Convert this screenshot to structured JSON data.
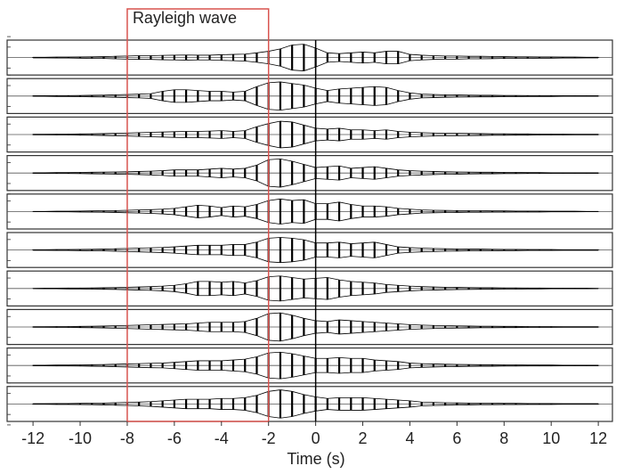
{
  "chart_data": {
    "type": "wiggle",
    "x_label": "Time (s)",
    "xlim": [
      -13.1,
      12.6
    ],
    "ylim": [
      -1,
      1
    ],
    "xticks": [
      -12,
      -10,
      -8,
      -6,
      -4,
      -2,
      0,
      2,
      4,
      6,
      8,
      10,
      12
    ],
    "x": [
      -12,
      -11.5,
      -11,
      -10.5,
      -10,
      -9.5,
      -9,
      -8.5,
      -8,
      -7.5,
      -7,
      -6.5,
      -6,
      -5.5,
      -5,
      -4.5,
      -4,
      -3.5,
      -3,
      -2.5,
      -2,
      -1.5,
      -1,
      -0.5,
      0,
      0.5,
      1,
      1.5,
      2,
      2.5,
      3,
      3.5,
      4,
      4.5,
      5,
      5.5,
      6,
      6.5,
      7,
      7.5,
      8,
      8.5,
      9,
      9.5,
      10,
      10.5,
      11,
      11.5,
      12
    ],
    "vline": 0,
    "annotation": {
      "text": "Rayleigh wave",
      "x": [
        -8,
        -2
      ],
      "color": "#d9534f"
    },
    "series": [
      {
        "color": "#000000",
        "values": [
          0.02,
          0.02,
          0.03,
          0.03,
          0.04,
          0.05,
          0.06,
          0.08,
          0.1,
          0.12,
          0.12,
          0.14,
          0.15,
          0.16,
          0.15,
          0.15,
          0.18,
          0.2,
          0.22,
          0.3,
          0.4,
          0.55,
          0.8,
          0.85,
          0.6,
          0.3,
          0.25,
          0.3,
          0.35,
          0.3,
          0.4,
          0.4,
          0.2,
          0.15,
          0.12,
          0.1,
          0.1,
          0.08,
          0.08,
          0.07,
          0.06,
          0.05,
          0.05,
          0.04,
          0.04,
          0.03,
          0.03,
          0.02,
          0.02
        ]
      },
      {
        "color": "#000000",
        "values": [
          0.02,
          0.02,
          0.03,
          0.03,
          0.04,
          0.05,
          0.06,
          0.08,
          0.1,
          0.12,
          0.15,
          0.3,
          0.4,
          0.4,
          0.35,
          0.3,
          0.3,
          0.25,
          0.3,
          0.6,
          0.85,
          0.9,
          0.8,
          0.7,
          0.5,
          0.35,
          0.45,
          0.5,
          0.55,
          0.6,
          0.55,
          0.35,
          0.2,
          0.12,
          0.1,
          0.08,
          0.07,
          0.06,
          0.05,
          0.05,
          0.04,
          0.04,
          0.03,
          0.03,
          0.03,
          0.02,
          0.02,
          0.02,
          0.02
        ]
      },
      {
        "color": "#000000",
        "values": [
          0.02,
          0.02,
          0.03,
          0.03,
          0.04,
          0.05,
          0.06,
          0.08,
          0.1,
          0.12,
          0.14,
          0.16,
          0.18,
          0.2,
          0.2,
          0.22,
          0.25,
          0.2,
          0.25,
          0.5,
          0.7,
          0.85,
          0.8,
          0.6,
          0.4,
          0.35,
          0.4,
          0.3,
          0.3,
          0.25,
          0.3,
          0.2,
          0.15,
          0.12,
          0.1,
          0.08,
          0.08,
          0.07,
          0.06,
          0.05,
          0.05,
          0.04,
          0.04,
          0.03,
          0.03,
          0.03,
          0.02,
          0.02,
          0.02
        ]
      },
      {
        "color": "#000000",
        "values": [
          0.02,
          0.02,
          0.03,
          0.03,
          0.04,
          0.05,
          0.06,
          0.07,
          0.08,
          0.1,
          0.12,
          0.15,
          0.2,
          0.2,
          0.2,
          0.25,
          0.3,
          0.25,
          0.3,
          0.5,
          0.85,
          0.9,
          0.75,
          0.55,
          0.35,
          0.4,
          0.45,
          0.3,
          0.35,
          0.4,
          0.3,
          0.2,
          0.15,
          0.12,
          0.1,
          0.08,
          0.07,
          0.06,
          0.05,
          0.05,
          0.04,
          0.04,
          0.03,
          0.03,
          0.02,
          0.02,
          0.02,
          0.02,
          0.02
        ]
      },
      {
        "color": "#000000",
        "values": [
          0.01,
          0.01,
          0.02,
          0.02,
          0.03,
          0.04,
          0.05,
          0.06,
          0.08,
          0.1,
          0.12,
          0.15,
          0.2,
          0.3,
          0.4,
          0.35,
          0.25,
          0.35,
          0.3,
          0.45,
          0.7,
          0.8,
          0.7,
          0.75,
          0.5,
          0.5,
          0.6,
          0.45,
          0.35,
          0.35,
          0.3,
          0.2,
          0.15,
          0.1,
          0.08,
          0.07,
          0.06,
          0.05,
          0.05,
          0.04,
          0.04,
          0.03,
          0.03,
          0.03,
          0.02,
          0.02,
          0.02,
          0.01,
          0.01
        ]
      },
      {
        "color": "#000000",
        "values": [
          0.02,
          0.02,
          0.03,
          0.03,
          0.04,
          0.05,
          0.06,
          0.08,
          0.1,
          0.12,
          0.14,
          0.16,
          0.2,
          0.25,
          0.3,
          0.3,
          0.3,
          0.35,
          0.35,
          0.5,
          0.75,
          0.8,
          0.75,
          0.65,
          0.45,
          0.45,
          0.5,
          0.4,
          0.45,
          0.5,
          0.35,
          0.2,
          0.15,
          0.12,
          0.1,
          0.08,
          0.07,
          0.06,
          0.06,
          0.05,
          0.04,
          0.04,
          0.03,
          0.03,
          0.03,
          0.02,
          0.02,
          0.02,
          0.02
        ]
      },
      {
        "color": "#000000",
        "values": [
          0.01,
          0.02,
          0.02,
          0.03,
          0.03,
          0.04,
          0.05,
          0.06,
          0.08,
          0.1,
          0.12,
          0.15,
          0.2,
          0.3,
          0.45,
          0.45,
          0.4,
          0.45,
          0.35,
          0.5,
          0.75,
          0.8,
          0.7,
          0.6,
          0.65,
          0.7,
          0.55,
          0.45,
          0.4,
          0.35,
          0.25,
          0.2,
          0.15,
          0.12,
          0.1,
          0.08,
          0.07,
          0.06,
          0.05,
          0.05,
          0.04,
          0.04,
          0.03,
          0.03,
          0.02,
          0.02,
          0.02,
          0.02,
          0.01
        ]
      },
      {
        "color": "#000000",
        "values": [
          0.02,
          0.02,
          0.03,
          0.03,
          0.04,
          0.05,
          0.06,
          0.08,
          0.1,
          0.12,
          0.14,
          0.16,
          0.18,
          0.2,
          0.25,
          0.3,
          0.3,
          0.3,
          0.35,
          0.55,
          0.85,
          0.9,
          0.75,
          0.55,
          0.4,
          0.35,
          0.45,
          0.4,
          0.35,
          0.3,
          0.25,
          0.2,
          0.15,
          0.12,
          0.1,
          0.08,
          0.07,
          0.06,
          0.05,
          0.05,
          0.04,
          0.04,
          0.03,
          0.03,
          0.03,
          0.02,
          0.02,
          0.02,
          0.02
        ]
      },
      {
        "color": "#000000",
        "values": [
          0.02,
          0.02,
          0.03,
          0.03,
          0.04,
          0.05,
          0.06,
          0.08,
          0.1,
          0.12,
          0.14,
          0.15,
          0.2,
          0.25,
          0.3,
          0.3,
          0.3,
          0.35,
          0.4,
          0.55,
          0.8,
          0.85,
          0.75,
          0.6,
          0.45,
          0.45,
          0.5,
          0.45,
          0.45,
          0.35,
          0.3,
          0.25,
          0.15,
          0.12,
          0.1,
          0.08,
          0.07,
          0.06,
          0.05,
          0.05,
          0.04,
          0.04,
          0.03,
          0.03,
          0.03,
          0.02,
          0.02,
          0.02,
          0.02
        ]
      },
      {
        "color": "#000000",
        "values": [
          0.02,
          0.02,
          0.03,
          0.03,
          0.04,
          0.05,
          0.06,
          0.08,
          0.1,
          0.12,
          0.15,
          0.2,
          0.25,
          0.3,
          0.3,
          0.3,
          0.35,
          0.35,
          0.4,
          0.55,
          0.8,
          0.9,
          0.8,
          0.6,
          0.45,
          0.35,
          0.4,
          0.4,
          0.4,
          0.35,
          0.3,
          0.25,
          0.2,
          0.12,
          0.1,
          0.08,
          0.07,
          0.06,
          0.05,
          0.05,
          0.04,
          0.04,
          0.03,
          0.03,
          0.03,
          0.02,
          0.02,
          0.02,
          0.02
        ]
      }
    ]
  }
}
